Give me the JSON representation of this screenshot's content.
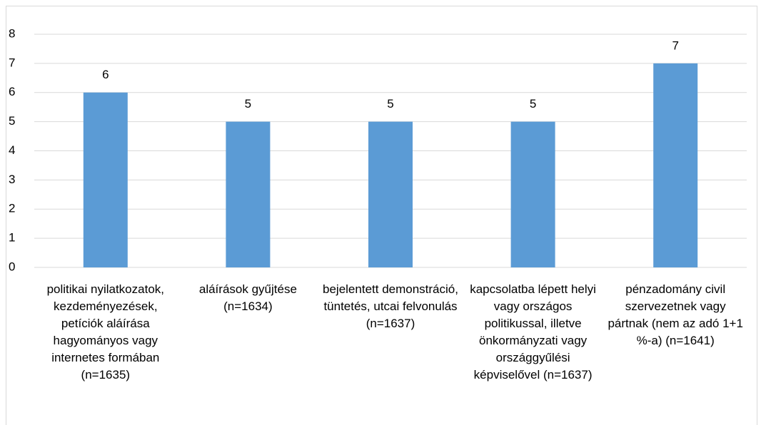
{
  "chart_data": {
    "type": "bar",
    "categories": [
      "politikai nyilatkozatok, kezdeményezések, petíciók aláírása hagyományos vagy internetes formában (n=1635)",
      "aláírások gyűjtése (n=1634)",
      "bejelentett demonstráció, tüntetés, utcai felvonulás (n=1637)",
      "kapcsolatba lépett helyi vagy országos politikussal, illetve önkormányzati vagy országgyűlési képviselővel (n=1637)",
      "pénzadomány civil szervezetnek vagy pártnak (nem az adó 1+1 %-a) (n=1641)"
    ],
    "values": [
      6,
      5,
      5,
      5,
      7
    ],
    "color": "#5b9bd5",
    "ylim": [
      0,
      8
    ],
    "yticks": [
      0,
      1,
      2,
      3,
      4,
      5,
      6,
      7,
      8
    ],
    "grid": true
  }
}
